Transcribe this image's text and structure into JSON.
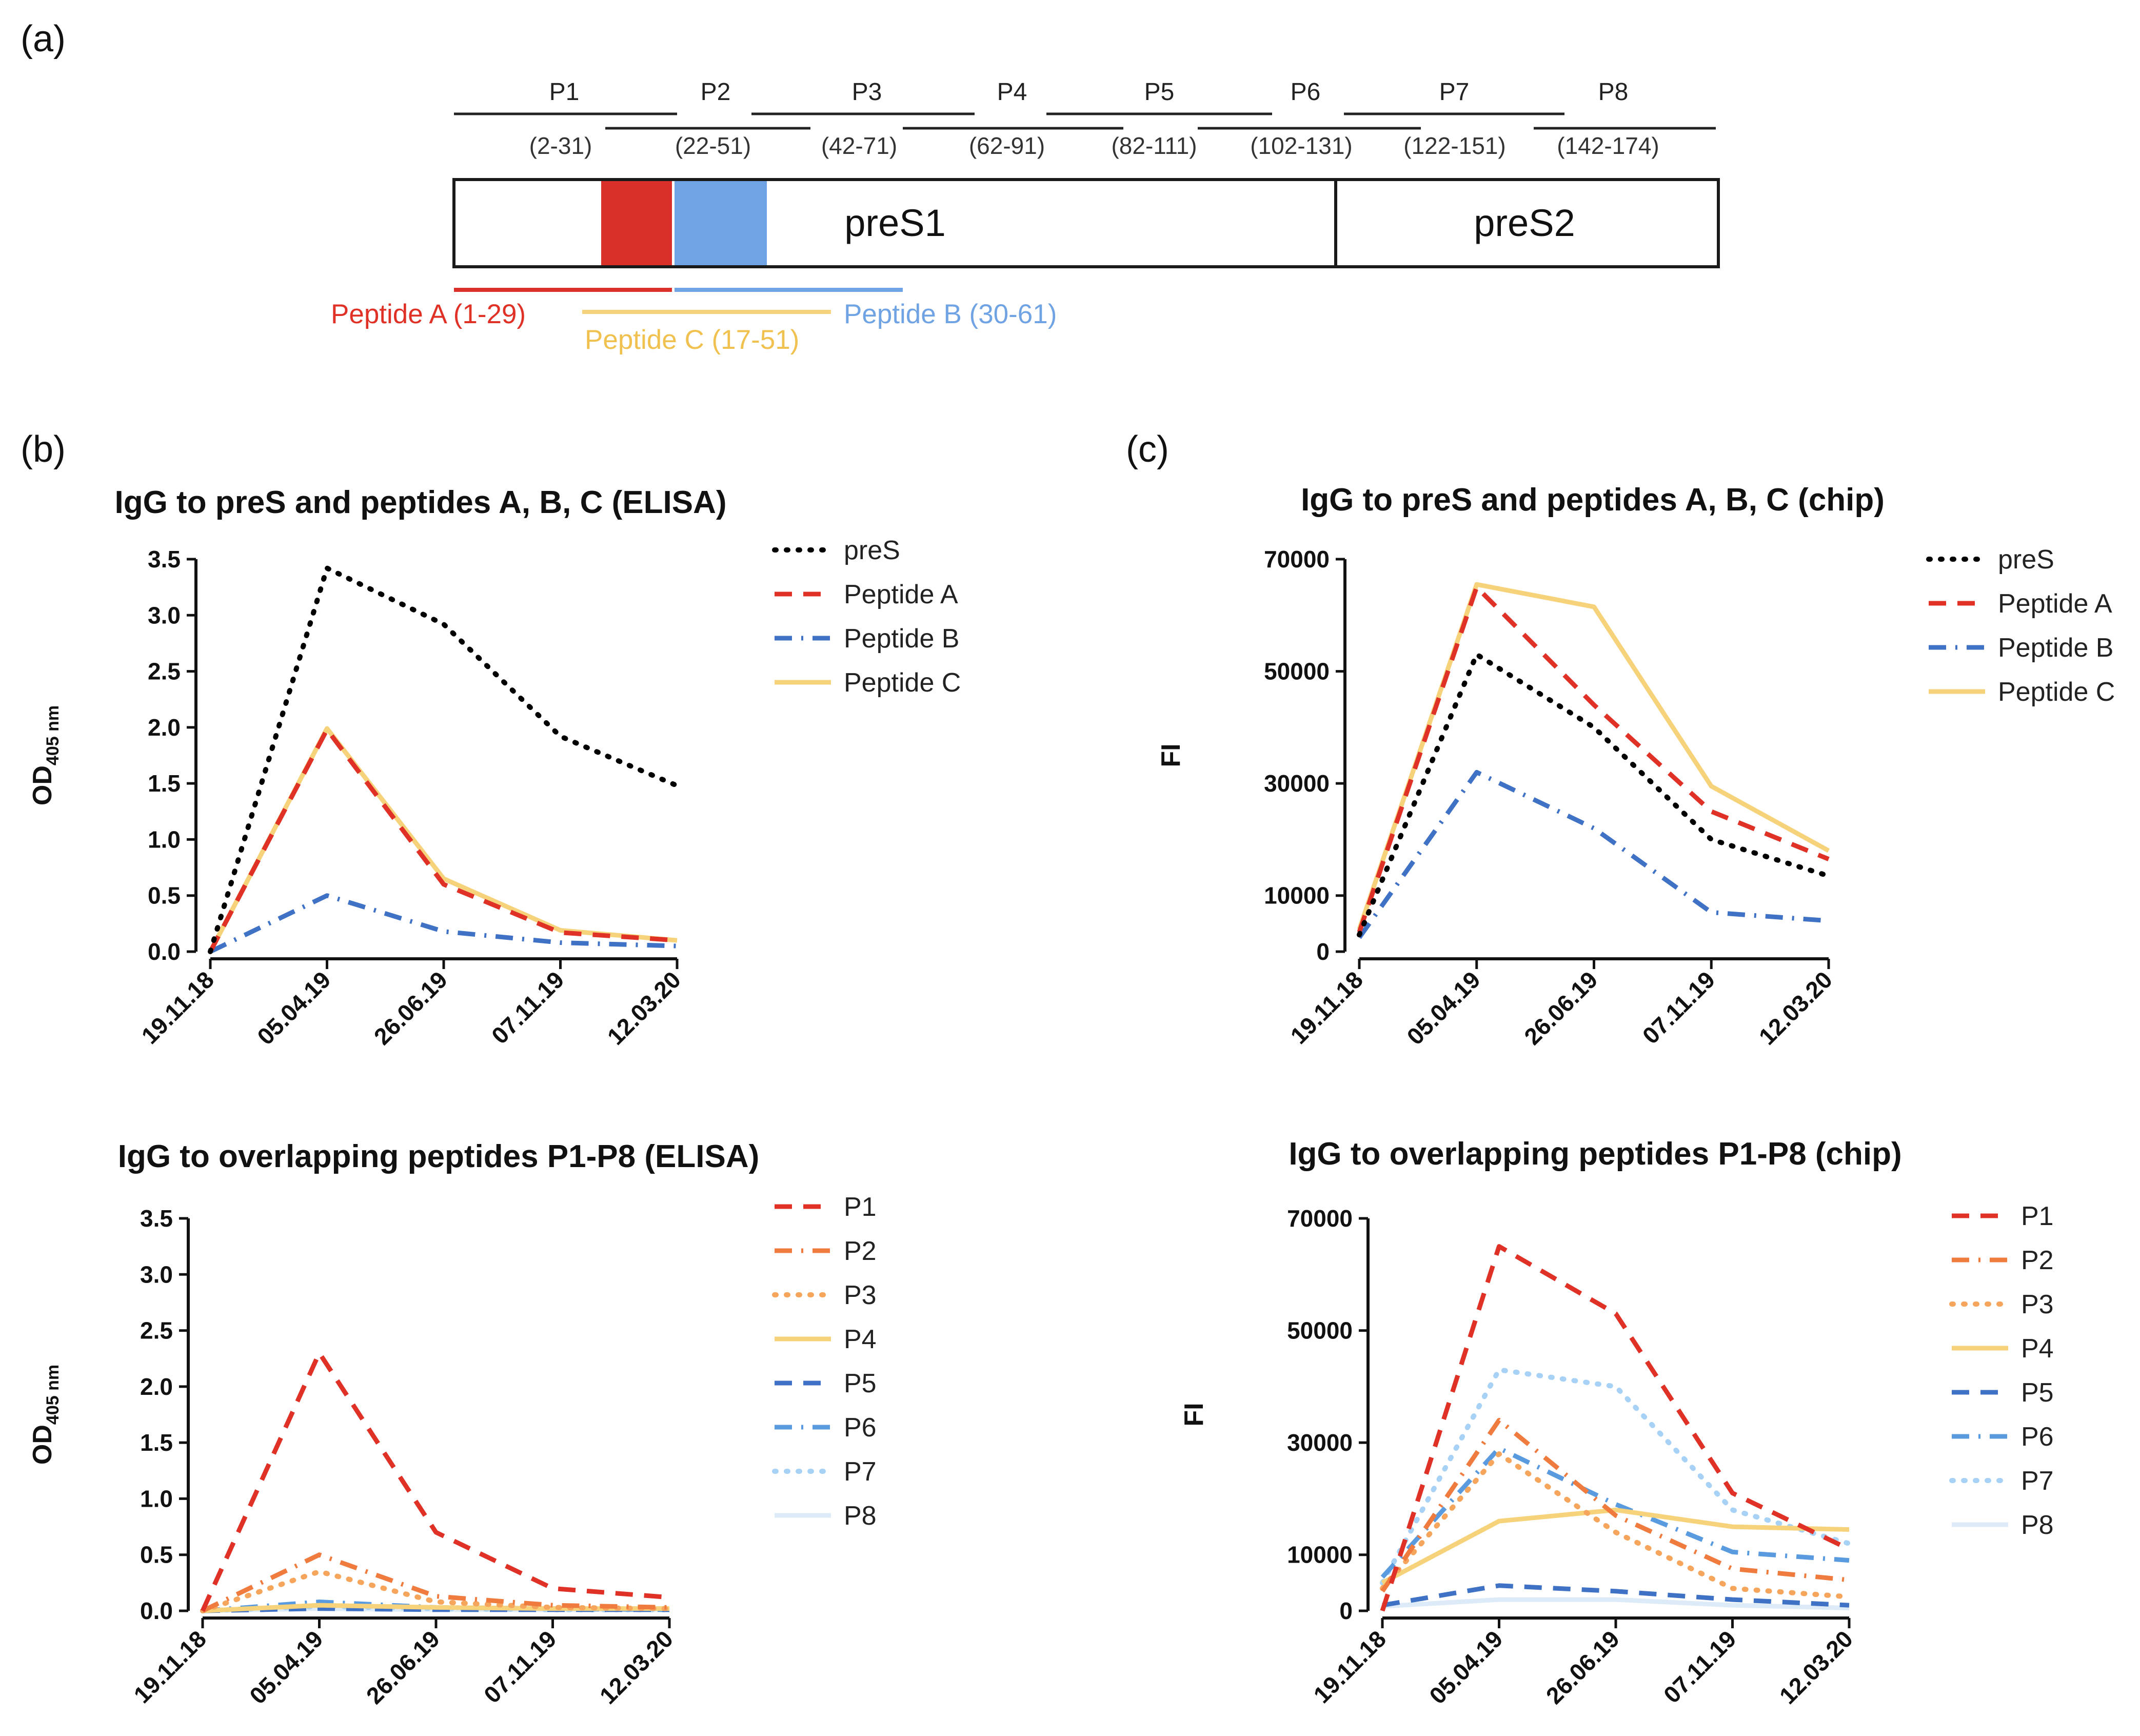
{
  "panel_labels": {
    "a": "(a)",
    "b": "(b)",
    "c": "(c)"
  },
  "schematic": {
    "peptides": [
      {
        "name": "P1",
        "range": "(2-31)"
      },
      {
        "name": "P2",
        "range": "(22-51)"
      },
      {
        "name": "P3",
        "range": "(42-71)"
      },
      {
        "name": "P4",
        "range": "(62-91)"
      },
      {
        "name": "P5",
        "range": "(82-111)"
      },
      {
        "name": "P6",
        "range": "(102-131)"
      },
      {
        "name": "P7",
        "range": "(122-151)"
      },
      {
        "name": "P8",
        "range": "(142-174)"
      }
    ],
    "regions": {
      "pres1": "preS1",
      "pres2": "preS2"
    },
    "peptide_a": "Peptide A (1-29)",
    "peptide_b": "Peptide B (30-61)",
    "peptide_c": "Peptide C (17-51)",
    "colors": {
      "peptide_a": "#d9312a",
      "peptide_b": "#6fa3e3",
      "peptide_c": "#f6d27a"
    }
  },
  "chart_data": [
    {
      "id": "elisa-abc",
      "type": "line",
      "title": "IgG to preS and peptides A, B, C (ELISA)",
      "ylabel_main": "OD",
      "ylabel_sub": "405 nm",
      "xlabel": "",
      "categories": [
        "19.11.18",
        "05.04.19",
        "26.06.19",
        "07.11.19",
        "12.03.20"
      ],
      "ylim": [
        0,
        3.5
      ],
      "yticks": [
        "0.0",
        "0.5",
        "1.0",
        "1.5",
        "2.0",
        "2.5",
        "3.0",
        "3.5"
      ],
      "series": [
        {
          "name": "preS",
          "color": "#000000",
          "dash": "dot",
          "values": [
            0.0,
            3.42,
            2.92,
            1.92,
            1.48
          ]
        },
        {
          "name": "Peptide A",
          "color": "#e03127",
          "dash": "dash",
          "values": [
            0.0,
            1.98,
            0.6,
            0.17,
            0.1
          ]
        },
        {
          "name": "Peptide B",
          "color": "#3f72c5",
          "dash": "dashdot",
          "values": [
            0.0,
            0.5,
            0.18,
            0.08,
            0.05
          ]
        },
        {
          "name": "Peptide C",
          "color": "#f6d27a",
          "dash": "solid",
          "values": [
            0.0,
            1.99,
            0.65,
            0.19,
            0.1
          ]
        }
      ]
    },
    {
      "id": "chip-abc",
      "type": "line",
      "title": "IgG to preS and peptides A, B, C (chip)",
      "ylabel_main": "FI",
      "ylabel_sub": "",
      "xlabel": "",
      "categories": [
        "19.11.18",
        "05.04.19",
        "26.06.19",
        "07.11.19",
        "12.03.20"
      ],
      "ylim": [
        0,
        70000
      ],
      "yticks": [
        "0",
        "10000",
        "30000",
        "50000",
        "70000"
      ],
      "series": [
        {
          "name": "preS",
          "color": "#000000",
          "dash": "dot",
          "values": [
            3000,
            53000,
            40000,
            20000,
            13500
          ]
        },
        {
          "name": "Peptide A",
          "color": "#e03127",
          "dash": "dash",
          "values": [
            3500,
            65000,
            44000,
            25000,
            16500
          ]
        },
        {
          "name": "Peptide B",
          "color": "#3f72c5",
          "dash": "dashdot",
          "values": [
            2500,
            32000,
            22000,
            7000,
            5500
          ]
        },
        {
          "name": "Peptide C",
          "color": "#f6d27a",
          "dash": "solid",
          "values": [
            4000,
            65500,
            61500,
            29500,
            18000
          ]
        }
      ]
    },
    {
      "id": "elisa-p1p8",
      "type": "line",
      "title": "IgG to overlapping peptides P1-P8 (ELISA)",
      "ylabel_main": "OD",
      "ylabel_sub": "405 nm",
      "xlabel": "",
      "categories": [
        "19.11.18",
        "05.04.19",
        "26.06.19",
        "07.11.19",
        "12.03.20"
      ],
      "ylim": [
        0,
        3.5
      ],
      "yticks": [
        "0.0",
        "0.5",
        "1.0",
        "1.5",
        "2.0",
        "2.5",
        "3.0",
        "3.5"
      ],
      "series": [
        {
          "name": "P1",
          "color": "#e03127",
          "dash": "dash",
          "values": [
            0.0,
            2.3,
            0.7,
            0.2,
            0.12
          ]
        },
        {
          "name": "P2",
          "color": "#f07b3f",
          "dash": "dashdot",
          "values": [
            0.0,
            0.5,
            0.13,
            0.05,
            0.03
          ]
        },
        {
          "name": "P3",
          "color": "#f6a55c",
          "dash": "dot",
          "values": [
            0.0,
            0.35,
            0.08,
            0.03,
            0.02
          ]
        },
        {
          "name": "P4",
          "color": "#f6d27a",
          "dash": "solid",
          "values": [
            0.0,
            0.05,
            0.03,
            0.02,
            0.02
          ]
        },
        {
          "name": "P5",
          "color": "#3f72c5",
          "dash": "dash",
          "values": [
            0.0,
            0.02,
            0.01,
            0.01,
            0.01
          ]
        },
        {
          "name": "P6",
          "color": "#5a9be0",
          "dash": "dashdot",
          "values": [
            0.0,
            0.08,
            0.03,
            0.02,
            0.01
          ]
        },
        {
          "name": "P7",
          "color": "#a8d2f5",
          "dash": "dot",
          "values": [
            0.0,
            0.04,
            0.02,
            0.01,
            0.01
          ]
        },
        {
          "name": "P8",
          "color": "#dcebf7",
          "dash": "solid",
          "values": [
            0.0,
            0.02,
            0.01,
            0.01,
            0.01
          ]
        }
      ]
    },
    {
      "id": "chip-p1p8",
      "type": "line",
      "title": "IgG to overlapping peptides P1-P8 (chip)",
      "ylabel_main": "FI",
      "ylabel_sub": "",
      "xlabel": "",
      "categories": [
        "19.11.18",
        "05.04.19",
        "26.06.19",
        "07.11.19",
        "12.03.20"
      ],
      "ylim": [
        0,
        70000
      ],
      "yticks": [
        "0",
        "10000",
        "30000",
        "50000",
        "70000"
      ],
      "series": [
        {
          "name": "P1",
          "color": "#e03127",
          "dash": "dash",
          "values": [
            0,
            65000,
            53000,
            21000,
            11000
          ]
        },
        {
          "name": "P2",
          "color": "#f07b3f",
          "dash": "dashdot",
          "values": [
            3500,
            34000,
            17000,
            7500,
            5500
          ]
        },
        {
          "name": "P3",
          "color": "#f6a55c",
          "dash": "dot",
          "values": [
            4000,
            28000,
            14000,
            4000,
            2500
          ]
        },
        {
          "name": "P4",
          "color": "#f6d27a",
          "dash": "solid",
          "values": [
            5000,
            16000,
            18000,
            15000,
            14500
          ]
        },
        {
          "name": "P5",
          "color": "#3f72c5",
          "dash": "dash",
          "values": [
            1000,
            4500,
            3500,
            2000,
            1000
          ]
        },
        {
          "name": "P6",
          "color": "#5a9be0",
          "dash": "dashdot",
          "values": [
            6000,
            29000,
            19000,
            10500,
            9000
          ]
        },
        {
          "name": "P7",
          "color": "#a8d2f5",
          "dash": "dot",
          "values": [
            5000,
            43000,
            40000,
            18000,
            12000
          ]
        },
        {
          "name": "P8",
          "color": "#dcebf7",
          "dash": "solid",
          "values": [
            800,
            2000,
            2000,
            1000,
            500
          ]
        }
      ]
    }
  ]
}
